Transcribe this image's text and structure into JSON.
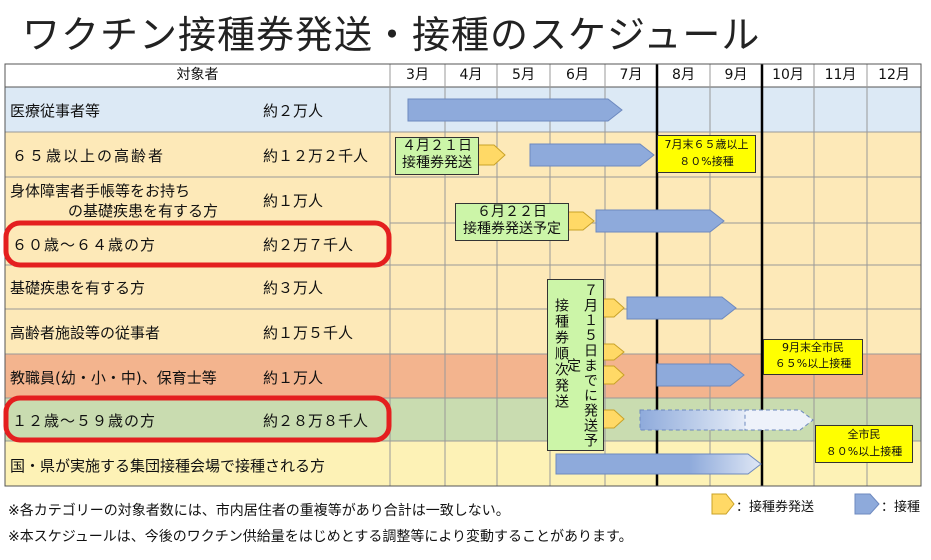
{
  "title": "ワクチン接種券発送・接種のスケジュール",
  "header": {
    "target": "対象者",
    "months": [
      "3月",
      "4月",
      "5月",
      "6月",
      "7月",
      "8月",
      "9月",
      "10月",
      "11月",
      "12月"
    ]
  },
  "rows": [
    {
      "name": "医療従事者等",
      "count": "約２万人"
    },
    {
      "name": "６５歳以上の高齢者",
      "count": "約１２万２千人"
    },
    {
      "name": "身体障害者手帳等をお持ち",
      "name2": "の基礎疾患を有する方",
      "count": "約１万人"
    },
    {
      "name": "６０歳～６４歳の方",
      "count": "約２万７千人"
    },
    {
      "name": "基礎疾患を有する方",
      "count": "約３万人"
    },
    {
      "name": "高齢者施設等の従事者",
      "count": "約１万５千人"
    },
    {
      "name": "教職員(幼・小・中)、保育士等",
      "count": "約１万人"
    },
    {
      "name": "１２歳～５９歳の方",
      "count": "約２８万８千人"
    },
    {
      "name": "国・県が実施する集団接種会場で接種される方",
      "count": ""
    }
  ],
  "callouts": {
    "apr21": [
      "４月２１日",
      "接種券発送"
    ],
    "jun22": [
      "６月２２日",
      "接種券発送予定"
    ],
    "jul15": "７月１５日までに発送予定",
    "jun22_seq": "接種券順次発送",
    "jul_end_65": [
      "7月末６５歳以上",
      "８０%接種"
    ],
    "sep_end": [
      "9月末全市民",
      "６５%以上接種"
    ],
    "all_citizens": [
      "全市民",
      "８０%以上接種"
    ]
  },
  "legend": {
    "ticket": "：接種券発送",
    "vaccination": "：接種"
  },
  "notes": [
    "※各カテゴリーの対象者数には、市内居住者の重複等があり合計は一致しない。",
    "※本スケジュールは、今後のワクチン供給量をはじめとする調整等により変動することがあります。"
  ],
  "colors": {
    "row_blue": "#dce9f5",
    "row_yellow": "#fde9b8",
    "row_orange": "#f3b48e",
    "row_green": "#c9dcb0",
    "row_lightyellow": "#fdf2b6",
    "arrow_blue": "#8eaadb",
    "arrow_yellow": "#ffd966",
    "callout_green": "#ccf5a8",
    "callout_yellow": "#ffff00",
    "highlight_red": "#e41f1f"
  }
}
